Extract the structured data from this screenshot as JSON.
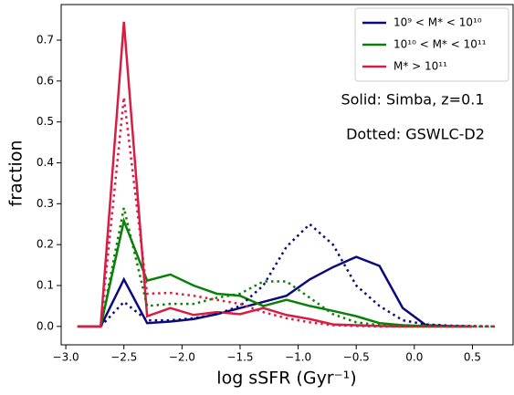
{
  "chart_data": {
    "type": "line",
    "xlabel": "log sSFR (Gyr⁻¹)",
    "ylabel": "fraction",
    "annotations": [
      "Solid: Simba, z=0.1",
      "Dotted: GSWLC-D2"
    ],
    "x": [
      -2.9,
      -2.7,
      -2.5,
      -2.3,
      -2.1,
      -1.9,
      -1.7,
      -1.5,
      -1.3,
      -1.1,
      -0.9,
      -0.7,
      -0.5,
      -0.3,
      -0.1,
      0.1,
      0.3,
      0.5,
      0.7
    ],
    "series": [
      {
        "name": "10⁹ < M* < 10¹⁰",
        "color": "#0a0a78",
        "linestyle": "solid",
        "values": [
          0,
          0,
          0.115,
          0.008,
          0.012,
          0.018,
          0.03,
          0.045,
          0.06,
          0.075,
          0.115,
          0.145,
          0.17,
          0.148,
          0.045,
          0.003,
          0.001,
          0,
          null
        ]
      },
      {
        "name": "10¹⁰ < M* < 10¹¹",
        "color": "#0a800a",
        "linestyle": "solid",
        "values": [
          0,
          0,
          0.258,
          0.112,
          0.127,
          0.1,
          0.08,
          0.075,
          0.05,
          0.065,
          0.05,
          0.038,
          0.025,
          0.008,
          0.003,
          0.001,
          0,
          0,
          null
        ]
      },
      {
        "name": "M* > 10¹¹",
        "color": "#d81c44",
        "linestyle": "solid",
        "values": [
          0,
          0,
          0.745,
          0.025,
          0.045,
          0.028,
          0.035,
          0.03,
          0.045,
          0.028,
          0.018,
          0.005,
          0.003,
          0.001,
          0,
          0,
          0,
          0,
          null
        ]
      },
      {
        "color": "#0a0a78",
        "linestyle": "dotted",
        "values": [
          null,
          0,
          0.06,
          0.015,
          0.015,
          0.02,
          0.03,
          0.05,
          0.1,
          0.195,
          0.25,
          0.2,
          0.1,
          0.05,
          0.015,
          0.005,
          0.002,
          0.001,
          0
        ]
      },
      {
        "color": "#0a800a",
        "linestyle": "dotted",
        "values": [
          null,
          0,
          0.29,
          0.05,
          0.055,
          0.055,
          0.07,
          0.08,
          0.11,
          0.11,
          0.07,
          0.03,
          0.01,
          0.003,
          0.001,
          0,
          0,
          0,
          0
        ]
      },
      {
        "color": "#d81c44",
        "linestyle": "dotted",
        "values": [
          null,
          0,
          0.56,
          0.08,
          0.082,
          0.075,
          0.065,
          0.055,
          0.035,
          0.02,
          0.01,
          0.003,
          0.001,
          0,
          0,
          0,
          0,
          0,
          0
        ]
      }
    ],
    "xlim": [
      -3.04,
      0.85
    ],
    "ylim": [
      -0.045,
      0.787
    ],
    "xticks": [
      {
        "value": -3.0,
        "label": "−3.0"
      },
      {
        "value": -2.5,
        "label": "−2.5"
      },
      {
        "value": -2.0,
        "label": "−2.0"
      },
      {
        "value": -1.5,
        "label": "−1.5"
      },
      {
        "value": -1.0,
        "label": "−1.0"
      },
      {
        "value": -0.5,
        "label": "−0.5"
      },
      {
        "value": 0.0,
        "label": "0.0"
      },
      0.5
    ],
    "yticks": [
      {
        "value": 0.0,
        "label": "0.0"
      },
      0.1,
      0.2,
      0.3,
      0.4,
      0.5,
      0.6,
      0.7
    ],
    "legend": "upper right",
    "grid": false
  }
}
